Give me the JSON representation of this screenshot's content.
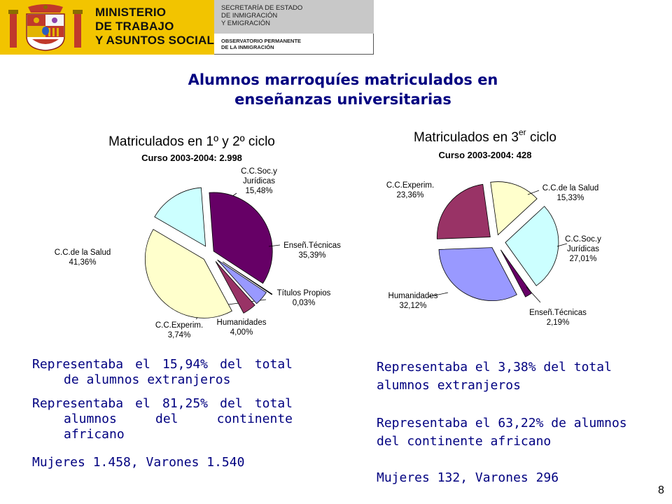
{
  "header": {
    "ministry_lines": [
      "MINISTERIO",
      "DE TRABAJO",
      "Y ASUNTOS SOCIALES"
    ],
    "secretaria_lines": [
      "SECRETARÍA DE ESTADO",
      "DE INMIGRACIÓN",
      "Y EMIGRACIÓN"
    ],
    "observatorio_lines": [
      "OBSERVATORIO PERMANENTE",
      "DE LA INMIGRACIÓN"
    ]
  },
  "title_lines": [
    "Alumnos marroquíes matriculados en",
    "enseñanzas universitarias"
  ],
  "chart_data": [
    {
      "type": "pie",
      "title": "Matriculados en 1º y 2º ciclo",
      "subtitle": "Curso 2003-2004: 2.998",
      "slices": [
        {
          "label_lines": [
            "C.C.Soc.y",
            "Jurídicas"
          ],
          "value_label": "15,48%",
          "value": 15.48,
          "color": "#ccffff"
        },
        {
          "label_lines": [
            "Enseñ.Técnicas"
          ],
          "value_label": "35,39%",
          "value": 35.39,
          "color": "#660066"
        },
        {
          "label_lines": [
            "Títulos Propios"
          ],
          "value_label": "0,03%",
          "value": 0.03,
          "color": "#ccccff"
        },
        {
          "label_lines": [
            "Humanidades"
          ],
          "value_label": "4,00%",
          "value": 4.0,
          "color": "#9999ff"
        },
        {
          "label_lines": [
            "C.C.Experim."
          ],
          "value_label": "3,74%",
          "value": 3.74,
          "color": "#993366"
        },
        {
          "label_lines": [
            "C.C.de la Salud"
          ],
          "value_label": "41,36%",
          "value": 41.36,
          "color": "#ffffcc"
        }
      ]
    },
    {
      "type": "pie",
      "title": "Matriculados en 3",
      "title_superscript": "er",
      "title_suffix": " ciclo",
      "subtitle": "Curso 2003-2004: 428",
      "slices": [
        {
          "label_lines": [
            "C.C.de la Salud"
          ],
          "value_label": "15,33%",
          "value": 15.33,
          "color": "#ffffcc"
        },
        {
          "label_lines": [
            "C.C.Soc.y",
            "Jurídicas"
          ],
          "value_label": "27,01%",
          "value": 27.01,
          "color": "#ccffff"
        },
        {
          "label_lines": [
            "Enseñ.Técnicas"
          ],
          "value_label": "2,19%",
          "value": 2.19,
          "color": "#660066"
        },
        {
          "label_lines": [
            "Humanidades"
          ],
          "value_label": "32,12%",
          "value": 32.12,
          "color": "#9999ff"
        },
        {
          "label_lines": [
            "C.C.Experim."
          ],
          "value_label": "23,36%",
          "value": 23.36,
          "color": "#993366"
        }
      ]
    }
  ],
  "stats_left": [
    "Representaba el 15,94% del total de alumnos extranjeros",
    "Representaba el 81,25% del total alumnos del continente africano",
    "Mujeres 1.458, Varones 1.540"
  ],
  "stats_right": [
    "Representaba el 3,38% del total alumnos extranjeros",
    "Representaba el 63,22% de alumnos del continente africano",
    "Mujeres 132, Varones 296"
  ],
  "page_number": "8"
}
